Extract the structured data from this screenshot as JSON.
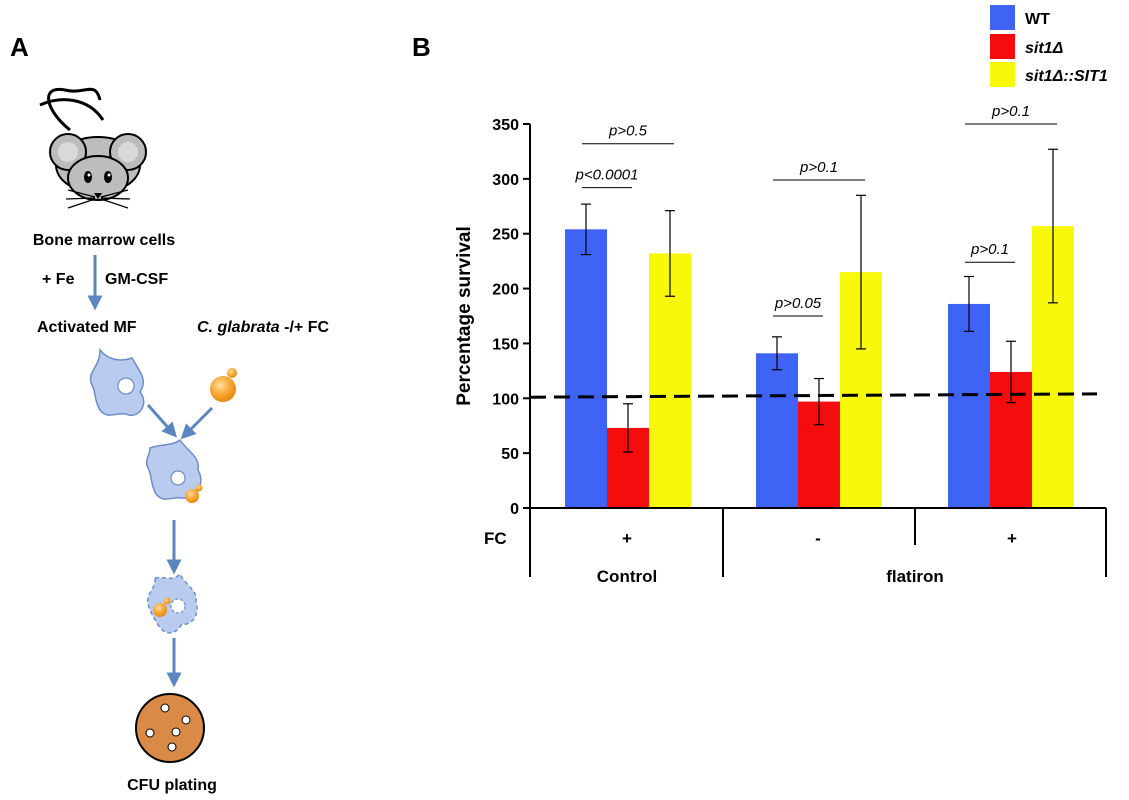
{
  "panel_a": {
    "label": "A",
    "bone_marrow": "Bone marrow cells",
    "fe": "+ Fe",
    "gmcsf": "GM-CSF",
    "activated": "Activated MF",
    "glabrata_species": "C. glabrata",
    "glabrata_rest": " -/+ FC",
    "cfu": "CFU plating"
  },
  "panel_b": {
    "label": "B"
  },
  "chart_data": {
    "type": "bar",
    "ylabel": "Percentage survival",
    "ylim": [
      0,
      350
    ],
    "yticks": [
      "0",
      "50",
      "100",
      "150",
      "200",
      "250",
      "300",
      "350"
    ],
    "grid": false,
    "legend_position": "top-right",
    "row_label": "FC",
    "categories": [
      "+",
      "-",
      "+"
    ],
    "groups": [
      {
        "label": "Control",
        "span": [
          0,
          0
        ]
      },
      {
        "label": "flatiron",
        "span": [
          1,
          2
        ]
      }
    ],
    "series": [
      {
        "name": "WT",
        "color": "#3F63F5",
        "values": [
          254,
          141,
          186
        ],
        "errors": [
          23,
          15,
          25
        ]
      },
      {
        "name": "sit1Δ",
        "color": "#F50D0D",
        "values": [
          73,
          97,
          124
        ],
        "errors": [
          22,
          21,
          28
        ]
      },
      {
        "name": "sit1Δ::SIT1",
        "color": "#F8F80A",
        "values": [
          232,
          215,
          257
        ],
        "errors": [
          39,
          70,
          70
        ]
      }
    ],
    "reference_line": {
      "style": "dashed",
      "y_start": 101,
      "y_end": 104
    },
    "annotations": [
      {
        "text": "p<0.0001",
        "cat": 0,
        "from": 0,
        "to": 1,
        "y": 292
      },
      {
        "text": "p>0.5",
        "cat": 0,
        "from": 0,
        "to": 2,
        "y": 332
      },
      {
        "text": "p>0.05",
        "cat": 1,
        "from": 0,
        "to": 1,
        "y": 175
      },
      {
        "text": "p>0.1",
        "cat": 1,
        "from": 0,
        "to": 2,
        "y": 299
      },
      {
        "text": "p>0.1",
        "cat": 2,
        "from": 0,
        "to": 1,
        "y": 224
      },
      {
        "text": "p>0.1",
        "cat": 2,
        "from": 0,
        "to": 2,
        "y": 350
      }
    ]
  }
}
